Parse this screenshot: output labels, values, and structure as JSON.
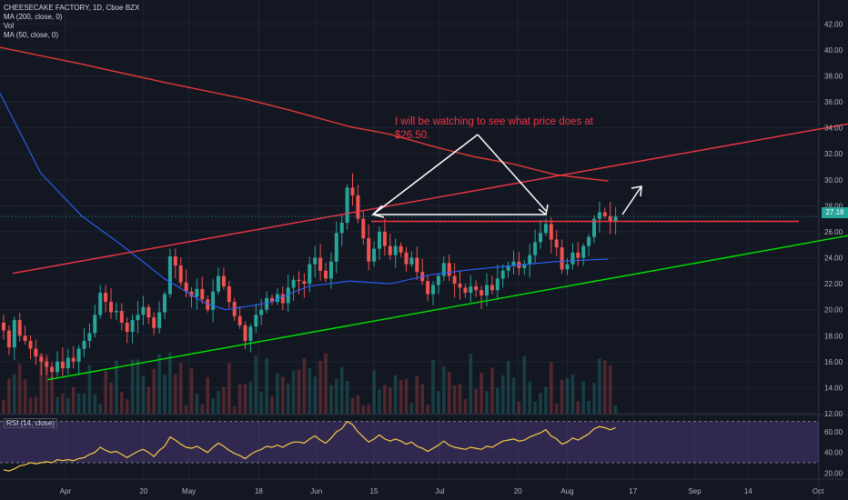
{
  "legend": {
    "symbol": "CHEESECAKE FACTORY, 1D, Cboe BZX",
    "ma200": "MA (200, close, 0)",
    "vol": "Vol",
    "ma50": "MA (50, close, 0)"
  },
  "rsi_title": "RSI (14, close)",
  "annotation": "I will be watching to see what price does at $26.50.",
  "last_price": "27.18",
  "colors": {
    "background": "#131722",
    "up": "#26a69a",
    "down": "#ef5350",
    "ma200": "#e53935",
    "ma50": "#2962ff",
    "support": "#00e600",
    "resistance": "#f23645",
    "rsi": "#f7c948",
    "rsi_band": "#7e57c2"
  },
  "chart_data": {
    "type": "candlestick",
    "price_axis": {
      "range": [
        12,
        43
      ],
      "ticks": [
        "42.00",
        "40.00",
        "38.00",
        "36.00",
        "34.00",
        "32.00",
        "30.00",
        "28.00",
        "26.00",
        "24.00",
        "22.00",
        "20.00",
        "18.00",
        "16.00",
        "14.00",
        "12.00"
      ]
    },
    "time_axis": {
      "labels": [
        {
          "label": "Apr",
          "day": 0
        },
        {
          "label": "20",
          "day": 19
        },
        {
          "label": "May",
          "day": 30
        },
        {
          "label": "18",
          "day": 47
        },
        {
          "label": "Jun",
          "day": 61
        },
        {
          "label": "15",
          "day": 75
        },
        {
          "label": "Jul",
          "day": 91
        },
        {
          "label": "20",
          "day": 110
        },
        {
          "label": "Aug",
          "day": 122
        },
        {
          "label": "17",
          "day": 138
        },
        {
          "label": "Sep",
          "day": 153
        },
        {
          "label": "14",
          "day": 166
        },
        {
          "label": "Oct",
          "day": 183
        }
      ]
    },
    "candles_close": [
      18.4,
      17.1,
      19.2,
      18.0,
      17.6,
      17.0,
      16.4,
      16.0,
      15.6,
      15.2,
      16.0,
      15.5,
      16.3,
      16.0,
      17.0,
      17.6,
      18.2,
      19.6,
      21.3,
      20.6,
      19.8,
      19.9,
      19.0,
      18.3,
      19.2,
      19.6,
      20.2,
      19.4,
      18.6,
      19.8,
      21.2,
      24.1,
      23.4,
      22.1,
      21.4,
      21.0,
      21.6,
      20.8,
      20.0,
      21.4,
      22.6,
      21.8,
      20.6,
      19.5,
      18.8,
      17.6,
      18.7,
      19.6,
      20.0,
      20.9,
      20.6,
      21.2,
      20.5,
      21.7,
      22.3,
      22.2,
      22.0,
      23.5,
      24.0,
      23.0,
      22.4,
      23.7,
      25.9,
      26.7,
      29.4,
      28.8,
      27.0,
      25.5,
      23.7,
      24.7,
      26.0,
      24.9,
      24.2,
      24.9,
      24.4,
      23.5,
      24.0,
      22.9,
      22.2,
      21.2,
      21.9,
      22.6,
      23.6,
      22.6,
      22.0,
      21.7,
      21.3,
      21.8,
      21.5,
      21.1,
      21.9,
      21.5,
      22.4,
      23.0,
      23.4,
      23.7,
      23.2,
      23.5,
      24.2,
      25.2,
      25.9,
      26.6,
      25.4,
      24.8,
      23.1,
      23.5,
      24.4,
      24.0,
      24.9,
      25.6,
      27.0,
      27.5,
      27.2,
      26.8,
      27.18
    ],
    "ma200": [
      [
        0,
        40.2
      ],
      [
        20,
        38.9
      ],
      [
        40,
        37.5
      ],
      [
        60,
        36.2
      ],
      [
        70,
        35.4
      ],
      [
        85,
        34.1
      ],
      [
        95,
        33.5
      ],
      [
        105,
        32.6
      ],
      [
        115,
        31.8
      ],
      [
        125,
        31.2
      ],
      [
        135,
        30.4
      ],
      [
        148,
        29.9
      ]
    ],
    "ma50": [
      [
        0,
        36.7
      ],
      [
        10,
        30.5
      ],
      [
        20,
        27.2
      ],
      [
        30,
        24.9
      ],
      [
        40,
        22.4
      ],
      [
        50,
        20.5
      ],
      [
        55,
        20.0
      ],
      [
        65,
        20.5
      ],
      [
        75,
        21.8
      ],
      [
        85,
        22.2
      ],
      [
        95,
        22.0
      ],
      [
        105,
        22.7
      ],
      [
        115,
        23.1
      ],
      [
        125,
        23.4
      ],
      [
        135,
        23.7
      ],
      [
        148,
        23.9
      ]
    ],
    "trendlines": [
      {
        "role": "resistance",
        "from": [
          0,
          22.8
        ],
        "to": [
          193,
          34.3
        ]
      },
      {
        "role": "support",
        "from": [
          8,
          14.6
        ],
        "to": [
          193,
          25.7
        ]
      },
      {
        "role": "horizontal",
        "from": [
          82,
          26.8
        ],
        "to": [
          193,
          26.8
        ]
      }
    ],
    "rsi": {
      "range": [
        15,
        75
      ],
      "ticks": [
        "60.00",
        "40.00",
        "20.00"
      ],
      "bands": [
        30,
        70
      ],
      "values": [
        23,
        22,
        24,
        27,
        28,
        30,
        29,
        30,
        31,
        30,
        33,
        32,
        33,
        32,
        34,
        35,
        38,
        40,
        45,
        42,
        40,
        41,
        38,
        35,
        38,
        41,
        43,
        40,
        36,
        42,
        46,
        55,
        52,
        48,
        45,
        44,
        46,
        43,
        40,
        45,
        49,
        46,
        42,
        39,
        37,
        34,
        38,
        41,
        43,
        46,
        45,
        47,
        45,
        48,
        50,
        50,
        49,
        53,
        56,
        52,
        49,
        54,
        60,
        63,
        70,
        67,
        60,
        55,
        50,
        53,
        57,
        53,
        51,
        53,
        51,
        48,
        50,
        46,
        44,
        41,
        44,
        47,
        51,
        47,
        45,
        44,
        43,
        45,
        44,
        43,
        46,
        45,
        48,
        51,
        52,
        53,
        51,
        52,
        55,
        57,
        59,
        62,
        56,
        53,
        48,
        50,
        54,
        52,
        55,
        58,
        63,
        65,
        64,
        62,
        64
      ]
    }
  }
}
